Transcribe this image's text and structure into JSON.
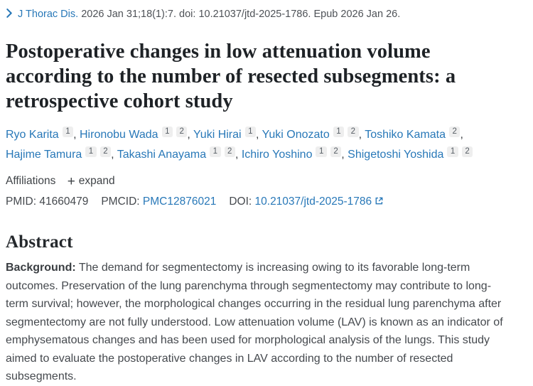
{
  "colors": {
    "link_blue": "#2878b8",
    "title_text": "#1e2226",
    "body_text": "#45494e",
    "chip_background": "#eeeeee"
  },
  "icons": {
    "chevron_right": "❯",
    "plus": "+",
    "external_link": "⧉"
  },
  "citation": {
    "journal_link": "J Thorac Dis.",
    "details": "2026 Jan 31;18(1):7. doi: 10.21037/jtd-2025-1786. Epub 2026 Jan 26."
  },
  "title": {
    "full": "Postoperative changes in low attenuation volume according to the number of resected subsegments: a retrospective cohort study",
    "lines": [
      "Postoperative changes in low attenuation volume",
      "according to the number of resected subsegments: a",
      "retrospective cohort study"
    ]
  },
  "authors": [
    {
      "name": "Ryo Karita",
      "sups": [
        "1"
      ]
    },
    {
      "name": "Hironobu Wada",
      "sups": [
        "1",
        "2"
      ]
    },
    {
      "name": "Yuki Hirai",
      "sups": [
        "1"
      ]
    },
    {
      "name": "Yuki Onozato",
      "sups": [
        "1",
        "2"
      ]
    },
    {
      "name": "Toshiko Kamata",
      "sups": [
        "2"
      ],
      "line_break_after": true
    },
    {
      "name": "Hajime Tamura",
      "sups": [
        "1",
        "2"
      ]
    },
    {
      "name": "Takashi Anayama",
      "sups": [
        "1",
        "2"
      ]
    },
    {
      "name": "Ichiro Yoshino",
      "sups": [
        "1",
        "2"
      ]
    },
    {
      "name": "Shigetoshi Yoshida",
      "sups": [
        "1",
        "2"
      ]
    }
  ],
  "affiliations": {
    "label": "Affiliations",
    "expand_label": "expand"
  },
  "identifiers": {
    "pmid_label": "PMID:",
    "pmid_value": "41660479",
    "pmcid_label": "PMCID:",
    "pmcid_value": "PMC12876021",
    "doi_label": "DOI:",
    "doi_value": "10.21037/jtd-2025-1786"
  },
  "abstract": {
    "heading": "Abstract",
    "background_label": "Background:",
    "background_text": "The demand for segmentectomy is increasing owing to its favorable long-term outcomes. Preservation of the lung parenchyma through segmentectomy may contribute to long-term survival; however, the morphological changes occurring in the residual lung parenchyma after segmentectomy are not fully understood. Low attenuation volume (LAV) is known as an indicator of emphysematous changes and has been used for morphological analysis of the lungs. This study aimed to evaluate the postoperative changes in LAV according to the number of resected subsegments."
  }
}
